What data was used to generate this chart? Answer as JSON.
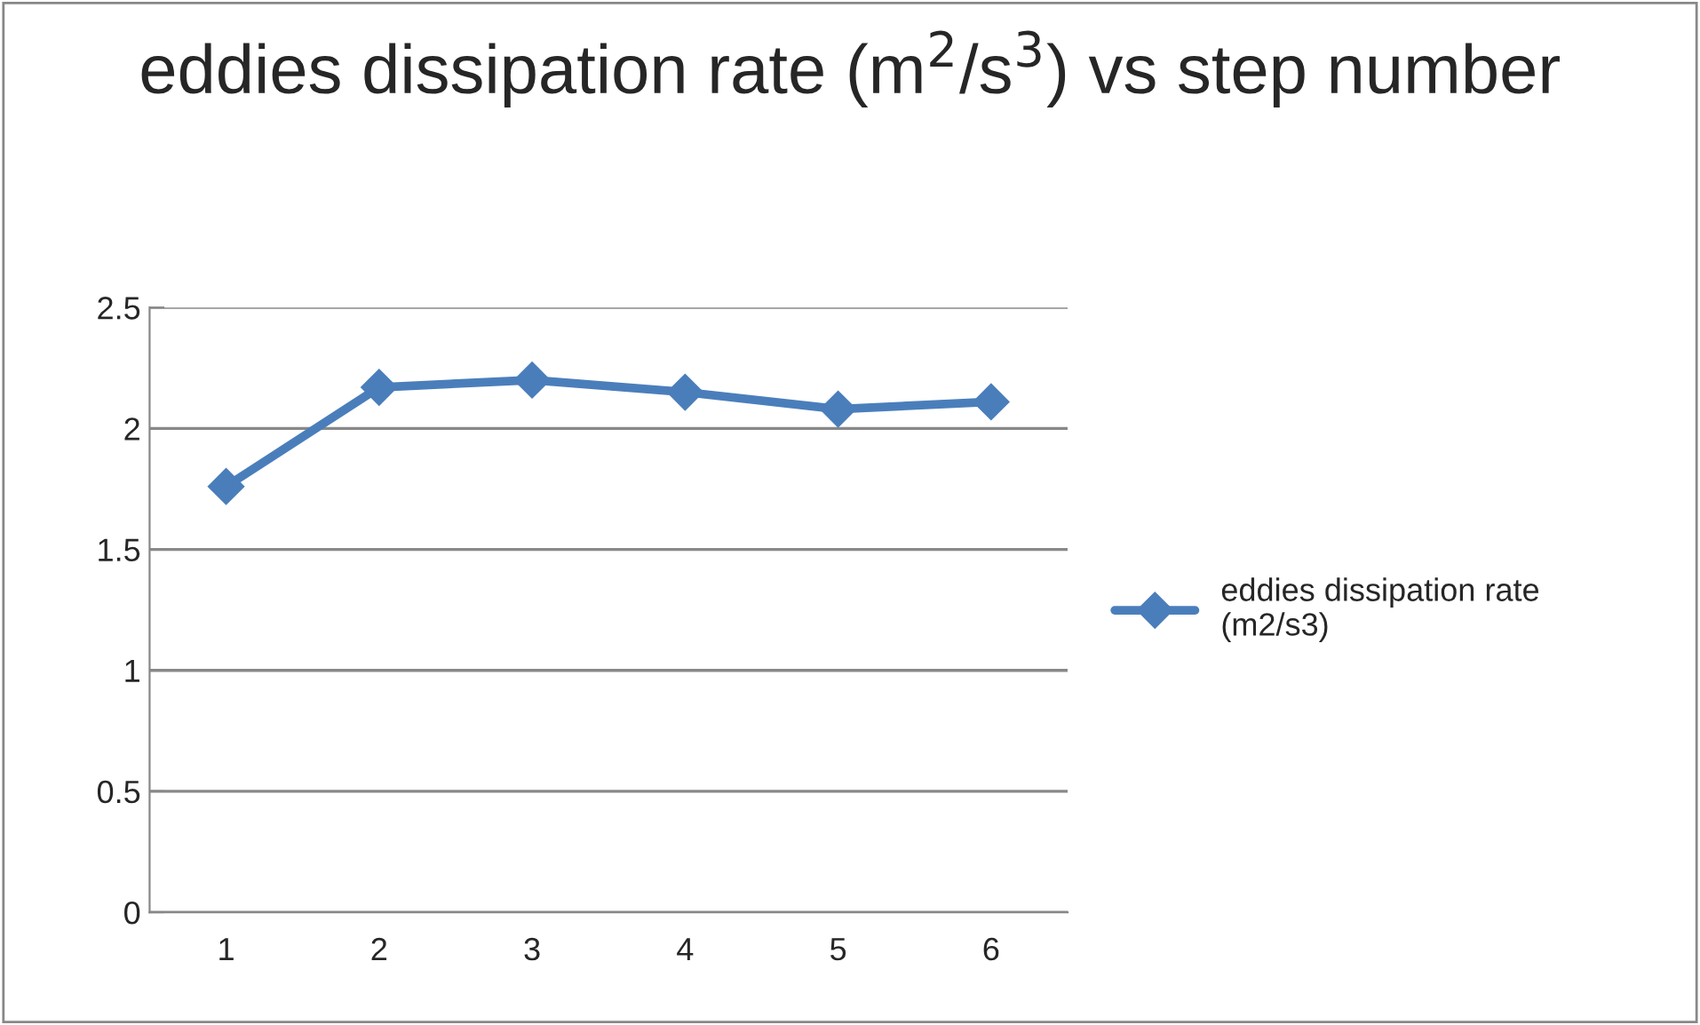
{
  "chart_data": {
    "type": "line",
    "title": "eddies dissipation rate (m$^{2}$/s$^{3}$) vs step number",
    "categories": [
      "1",
      "2",
      "3",
      "4",
      "5",
      "6"
    ],
    "series": [
      {
        "name": "eddies dissipation rate (m2/s3)",
        "color": "#4a7ebb",
        "values": [
          1.76,
          2.17,
          2.2,
          2.15,
          2.08,
          2.11
        ]
      }
    ],
    "ylim": [
      0,
      2.5
    ],
    "yticks": [
      0,
      0.5,
      1,
      1.5,
      2,
      2.5
    ],
    "grid": "y",
    "legend": "right",
    "marker": "diamond",
    "line_style": "solid"
  }
}
